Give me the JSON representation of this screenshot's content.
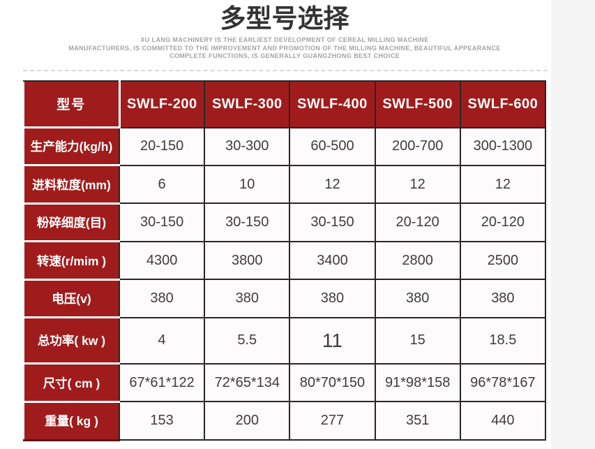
{
  "header": {
    "title": "多型号选择",
    "subtitle_lines": [
      "XU LANG MACHINERY IS THE EARLIEST DEVELOPMENT OF CEREAL MILLING MACHINE",
      "MANUFACTURERS, IS COMMITTED TO THE IMPROVEMENT AND PROMOTION OF THE MILLING MACHINE, BEAUTIFUL APPEARANCE",
      "COMPLETE FUNCTIONS, IS GENERALLY GUANGZHONG BEST CHOICE"
    ]
  },
  "colors": {
    "accent_red": "#A01C1C",
    "border_dark": "#262626",
    "maroon_bottom_edge": "#5C1212",
    "title_text": "#333333",
    "subtitle_text": "#A3A3A3",
    "data_text": "#3D3D3D",
    "header_text": "#FFFFFF",
    "cell_background": "#FDFBFB",
    "page_background": "#FFFFFF",
    "right_strip_background": "#F5F4F4",
    "divider": "#D8D8D8"
  },
  "chart_data": {
    "type": "table",
    "title": "多型号选择",
    "columns": [
      "型号",
      "SWLF-200",
      "SWLF-300",
      "SWLF-400",
      "SWLF-500",
      "SWLF-600"
    ],
    "rows": [
      {
        "label": "生产能力(kg/h)",
        "values": [
          "20-150",
          "30-300",
          "60-500",
          "200-700",
          "300-1300"
        ]
      },
      {
        "label": "进料粒度(mm)",
        "values": [
          "6",
          "10",
          "12",
          "12",
          "12"
        ]
      },
      {
        "label": "粉碎细度(目)",
        "values": [
          "30-150",
          "30-150",
          "30-150",
          "20-120",
          "20-120"
        ]
      },
      {
        "label": "转速(r/mim )",
        "values": [
          "4300",
          "3800",
          "3400",
          "2800",
          "2500"
        ]
      },
      {
        "label": "电压(v)",
        "values": [
          "380",
          "380",
          "380",
          "380",
          "380"
        ]
      },
      {
        "label": "总功率( kw )",
        "values": [
          "4",
          "5.5",
          "11",
          "15",
          "18.5"
        ]
      },
      {
        "label": "尺寸( cm )",
        "values": [
          "67*61*122",
          "72*65*134",
          "80*70*150",
          "91*98*158",
          "96*78*167"
        ]
      },
      {
        "label": "重量( kg )",
        "values": [
          "153",
          "200",
          "277",
          "351",
          "440"
        ]
      }
    ],
    "emphasized_cell": {
      "row_index": 5,
      "value_index": 2
    }
  }
}
